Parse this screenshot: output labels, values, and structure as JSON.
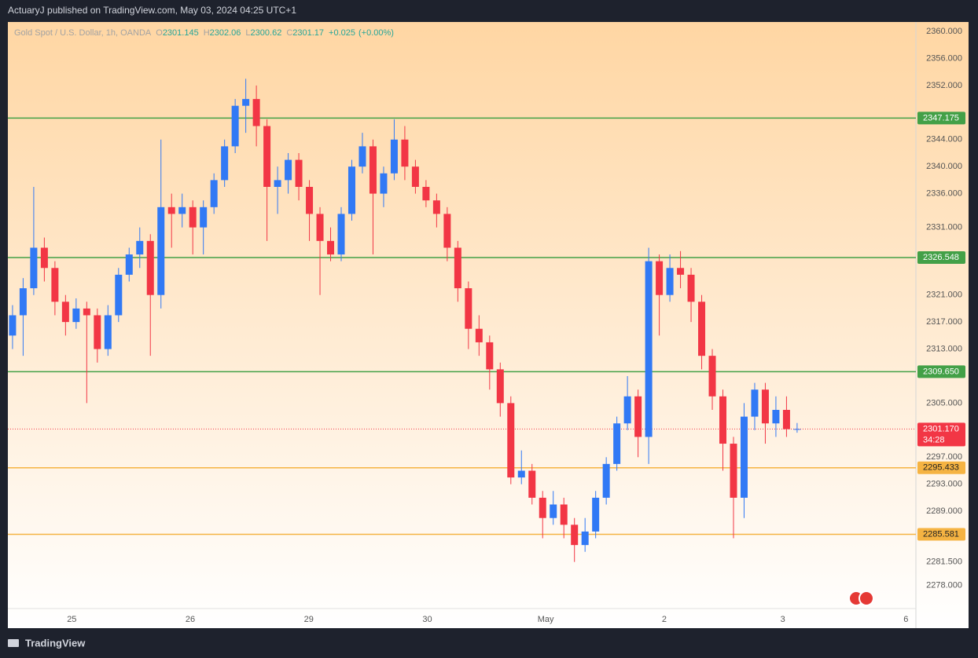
{
  "chart_data": {
    "type": "candlestick",
    "publisher": "ActuaryJ published on TradingView.com, May 03, 2024 04:25 UTC+1",
    "symbol": "Gold Spot / U.S. Dollar, 1h, OANDA",
    "ohlc_labels": [
      "O",
      "H",
      "L",
      "C"
    ],
    "change_label": "+0.025",
    "change_pct": "(+0.00%)",
    "brand": "TradingView",
    "up_color": "#3179f5",
    "down_color": "#f23645",
    "open": [
      2315,
      2318,
      2322,
      2328,
      2325,
      2320,
      2317,
      2319,
      2318,
      2313,
      2318,
      2324,
      2327,
      2329,
      2321,
      2334,
      2333,
      2334,
      2331,
      2334,
      2338,
      2343,
      2349,
      2350,
      2346,
      2337,
      2338,
      2341,
      2337,
      2333,
      2329,
      2327,
      2333,
      2340,
      2343,
      2336,
      2339,
      2344,
      2340,
      2337,
      2335,
      2333,
      2328,
      2322,
      2316,
      2314,
      2310,
      2305,
      2294,
      2295,
      2291,
      2288,
      2290,
      2287,
      2284,
      2286,
      2291,
      2296,
      2302,
      2306,
      2300,
      2326,
      2321,
      2325,
      2324,
      2320,
      2312,
      2306,
      2299,
      2291,
      2303,
      2307,
      2302,
      2304,
      2301.145
    ],
    "high": [
      2319.5,
      2323.5,
      2337,
      2329.5,
      2326,
      2321,
      2320.5,
      2320,
      2319,
      2319.5,
      2325,
      2328,
      2331,
      2330,
      2344,
      2336,
      2336,
      2335,
      2335,
      2339,
      2344,
      2350,
      2353,
      2352,
      2347,
      2340,
      2342,
      2342,
      2338,
      2334,
      2331,
      2334,
      2341,
      2345,
      2344,
      2340,
      2347,
      2346,
      2341,
      2338,
      2336,
      2334,
      2329,
      2323,
      2318,
      2315,
      2311,
      2306,
      2298,
      2296,
      2292,
      2292,
      2291,
      2288,
      2288,
      2292,
      2297,
      2303,
      2309,
      2307,
      2328,
      2327,
      2327,
      2327.5,
      2325,
      2321,
      2313,
      2307,
      2300,
      2305,
      2308,
      2308,
      2306,
      2306,
      2302.06
    ],
    "low": [
      2313,
      2312,
      2321,
      2323,
      2318,
      2315,
      2316,
      2305,
      2311,
      2312,
      2317,
      2323,
      2325,
      2312,
      2319,
      2328,
      2331,
      2327,
      2327,
      2333,
      2337,
      2342,
      2345,
      2343,
      2329,
      2333,
      2336,
      2335,
      2329,
      2321,
      2326,
      2326,
      2332,
      2339,
      2327,
      2334,
      2338,
      2338,
      2336,
      2334,
      2331,
      2326,
      2320,
      2313,
      2312,
      2307,
      2303,
      2293,
      2293,
      2290,
      2285,
      2287,
      2285,
      2281.5,
      2283,
      2285,
      2290,
      2295,
      2301,
      2297,
      2296,
      2315,
      2320,
      2322,
      2317,
      2310,
      2304,
      2295,
      2285,
      2288,
      2301,
      2299,
      2300,
      2300,
      2300.62
    ],
    "close": [
      2318,
      2322,
      2328,
      2325,
      2320,
      2317,
      2319,
      2318,
      2313,
      2318,
      2324,
      2327,
      2329,
      2321,
      2334,
      2333,
      2334,
      2331,
      2334,
      2338,
      2343,
      2349,
      2350,
      2346,
      2337,
      2338,
      2341,
      2337,
      2333,
      2329,
      2327,
      2333,
      2340,
      2343,
      2336,
      2339,
      2344,
      2340,
      2337,
      2335,
      2333,
      2328,
      2322,
      2316,
      2314,
      2310,
      2305,
      2294,
      2295,
      2291,
      2288,
      2290,
      2287,
      2284,
      2286,
      2291,
      2296,
      2302,
      2306,
      2300,
      2326,
      2321,
      2325,
      2324,
      2320,
      2312,
      2306,
      2299,
      2291,
      2303,
      2307,
      2302,
      2304,
      2301.145,
      2301.17
    ],
    "xlim": [
      -0.44,
      85.5
    ],
    "xticks": [
      {
        "value": 5.59,
        "label": "25"
      },
      {
        "value": 16.76,
        "label": "26"
      },
      {
        "value": 27.94,
        "label": "29"
      },
      {
        "value": 39.12,
        "label": "30"
      },
      {
        "value": 50.29,
        "label": "May"
      },
      {
        "value": 61.47,
        "label": "2"
      },
      {
        "value": 72.65,
        "label": "3"
      },
      {
        "value": 84.26,
        "label": "6"
      }
    ],
    "ylim": [
      2271.7,
      2361.4
    ],
    "yticks": [
      {
        "value": 2360,
        "label": "2360.000"
      },
      {
        "value": 2356,
        "label": "2356.000"
      },
      {
        "value": 2352,
        "label": "2352.000"
      },
      {
        "value": 2344,
        "label": "2344.000"
      },
      {
        "value": 2340,
        "label": "2340.000"
      },
      {
        "value": 2336,
        "label": "2336.000"
      },
      {
        "value": 2331,
        "label": "2331.000"
      },
      {
        "value": 2321,
        "label": "2321.000"
      },
      {
        "value": 2317,
        "label": "2317.000"
      },
      {
        "value": 2313,
        "label": "2313.000"
      },
      {
        "value": 2305,
        "label": "2305.000"
      },
      {
        "value": 2297,
        "label": "2297.000"
      },
      {
        "value": 2293,
        "label": "2293.000"
      },
      {
        "value": 2289,
        "label": "2289.000"
      },
      {
        "value": 2281.5,
        "label": "2281.500"
      },
      {
        "value": 2278,
        "label": "2278.000"
      }
    ],
    "grid": false,
    "levels": [
      {
        "value": 2347.175,
        "label": "2347.175",
        "color": "#43a047"
      },
      {
        "value": 2326.548,
        "label": "2326.548",
        "color": "#43a047"
      },
      {
        "value": 2309.65,
        "label": "2309.650",
        "color": "#43a047"
      },
      {
        "value": 2295.433,
        "label": "2295.433",
        "color": "#f5b342"
      },
      {
        "value": 2285.581,
        "label": "2285.581",
        "color": "#f5b342"
      }
    ],
    "last_price": {
      "value": 2301.17,
      "label": "2301.170",
      "countdown": "34:28",
      "color": "#f23645"
    }
  }
}
